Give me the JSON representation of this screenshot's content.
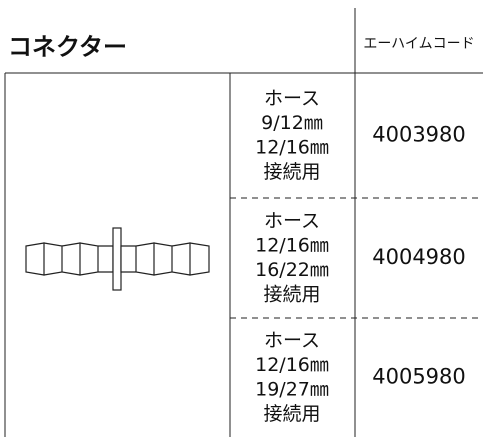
{
  "header": {
    "title": "コネクター",
    "code_label": "エーハイムコード"
  },
  "table": {
    "rows": [
      {
        "description": [
          "ホース",
          "9/12㎜",
          "12/16㎜",
          "接続用"
        ],
        "code": "4003980"
      },
      {
        "description": [
          "ホース",
          "12/16㎜",
          "16/22㎜",
          "接続用"
        ],
        "code": "4004980"
      },
      {
        "description": [
          "ホース",
          "12/16㎜",
          "19/27㎜",
          "接続用"
        ],
        "code": "4005980"
      }
    ]
  }
}
